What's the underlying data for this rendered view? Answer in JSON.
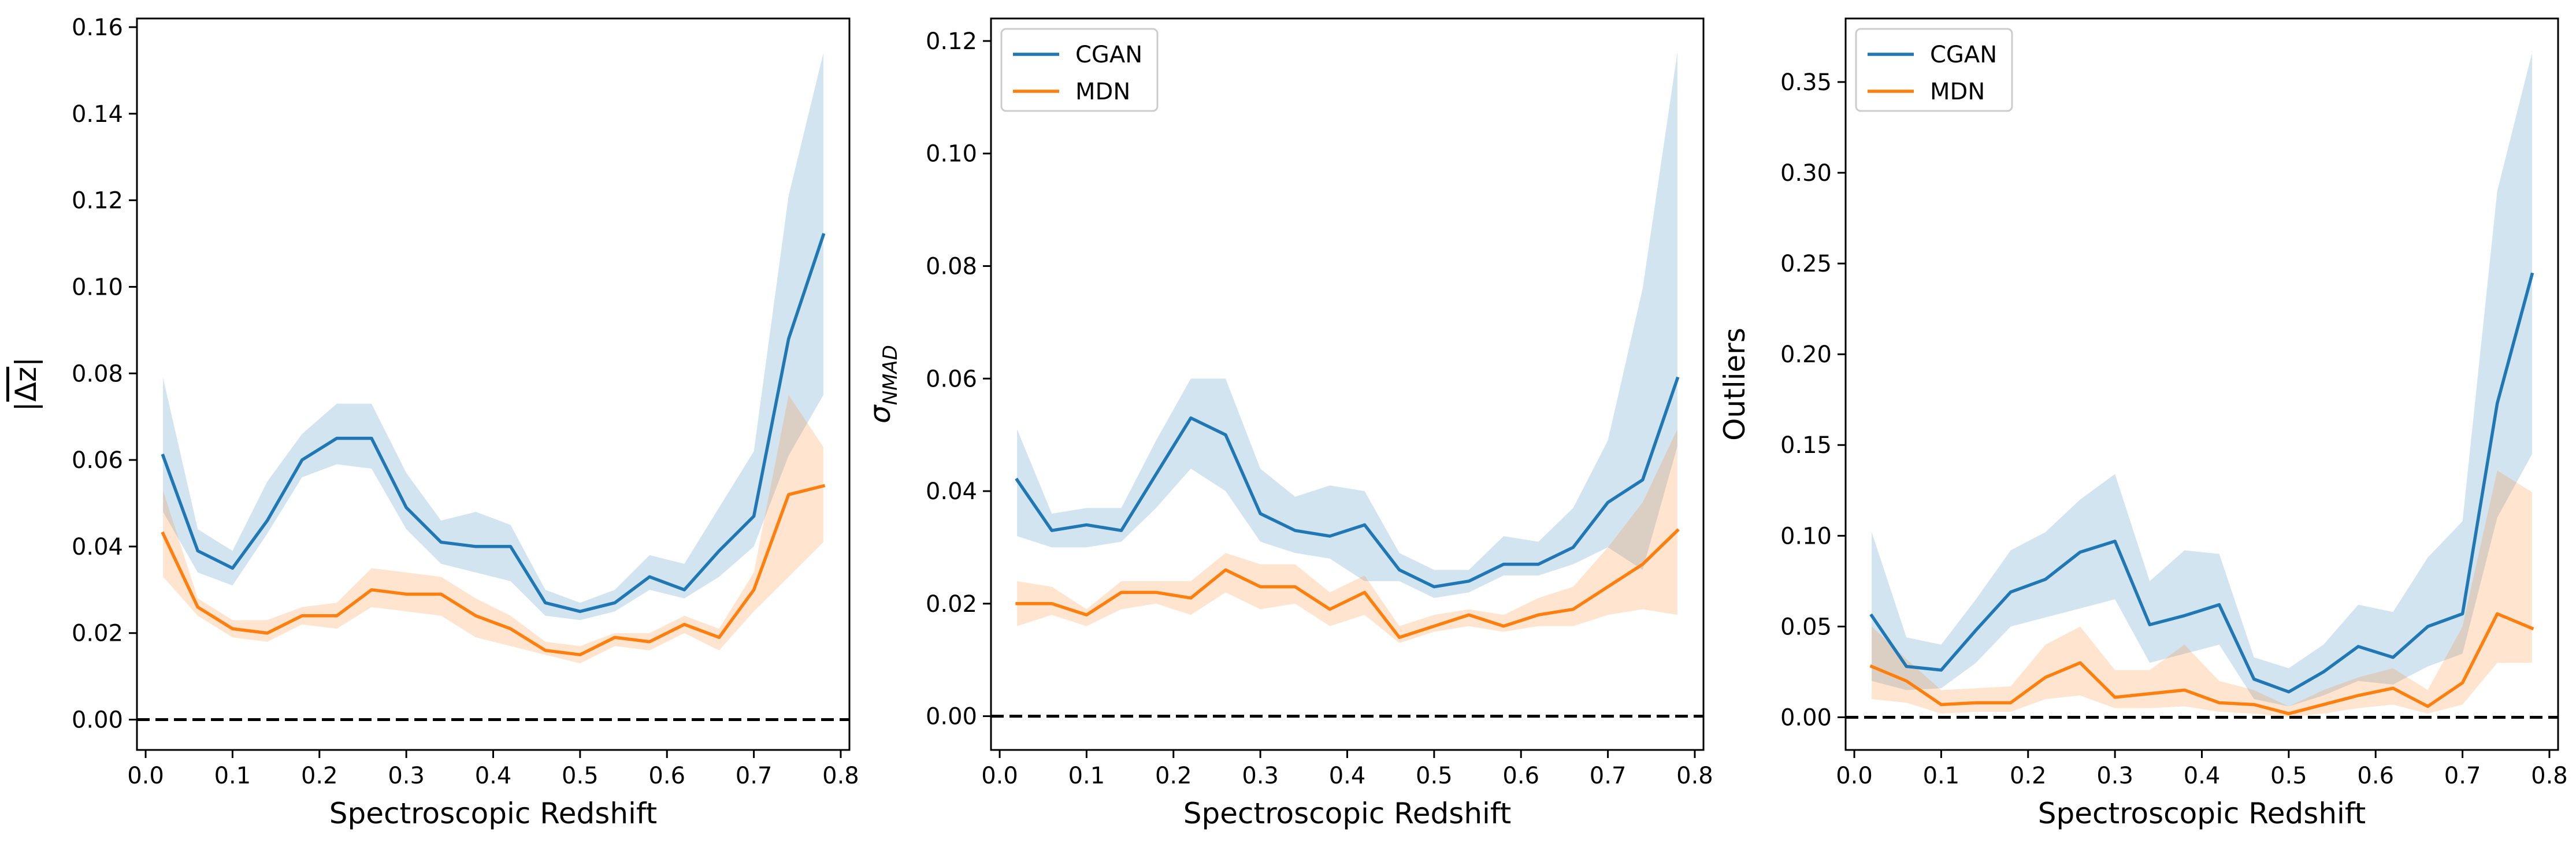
{
  "colors": {
    "cgan": "#1f77b4",
    "mdn": "#ff7f0e"
  },
  "chart_data": [
    {
      "type": "line",
      "xlabel": "Spectroscopic Redshift",
      "ylabel": "|Δz|",
      "xlim": [
        -0.01,
        0.81
      ],
      "ylim": [
        -0.007,
        0.162
      ],
      "xticks": [
        "0.0",
        "0.1",
        "0.2",
        "0.3",
        "0.4",
        "0.5",
        "0.6",
        "0.7",
        "0.8"
      ],
      "yticks": [
        "0.00",
        "0.02",
        "0.04",
        "0.06",
        "0.08",
        "0.10",
        "0.12",
        "0.14",
        "0.16"
      ],
      "legend": false,
      "reference_line": {
        "y": 0,
        "style": "dashed"
      },
      "x": [
        0.02,
        0.06,
        0.1,
        0.14,
        0.18,
        0.22,
        0.26,
        0.3,
        0.34,
        0.38,
        0.42,
        0.46,
        0.5,
        0.54,
        0.58,
        0.62,
        0.66,
        0.7,
        0.74,
        0.78
      ],
      "series": [
        {
          "name": "CGAN",
          "values": [
            0.061,
            0.039,
            0.035,
            0.046,
            0.06,
            0.065,
            0.065,
            0.049,
            0.041,
            0.04,
            0.04,
            0.027,
            0.025,
            0.027,
            0.033,
            0.03,
            0.039,
            0.047,
            0.088,
            0.112
          ],
          "lower": [
            0.048,
            0.034,
            0.031,
            0.043,
            0.056,
            0.059,
            0.058,
            0.044,
            0.036,
            0.034,
            0.032,
            0.024,
            0.023,
            0.025,
            0.03,
            0.028,
            0.033,
            0.04,
            0.061,
            0.075
          ],
          "upper": [
            0.079,
            0.044,
            0.039,
            0.055,
            0.066,
            0.073,
            0.073,
            0.057,
            0.046,
            0.048,
            0.045,
            0.03,
            0.027,
            0.03,
            0.038,
            0.036,
            0.049,
            0.062,
            0.121,
            0.154
          ]
        },
        {
          "name": "MDN",
          "values": [
            0.043,
            0.026,
            0.021,
            0.02,
            0.024,
            0.024,
            0.03,
            0.029,
            0.029,
            0.024,
            0.021,
            0.016,
            0.015,
            0.019,
            0.018,
            0.022,
            0.019,
            0.03,
            0.052,
            0.054
          ],
          "lower": [
            0.033,
            0.024,
            0.019,
            0.018,
            0.022,
            0.021,
            0.026,
            0.025,
            0.024,
            0.019,
            0.017,
            0.015,
            0.013,
            0.017,
            0.016,
            0.02,
            0.016,
            0.025,
            0.033,
            0.041
          ],
          "upper": [
            0.053,
            0.028,
            0.023,
            0.023,
            0.026,
            0.027,
            0.035,
            0.034,
            0.033,
            0.028,
            0.024,
            0.018,
            0.017,
            0.02,
            0.02,
            0.024,
            0.021,
            0.034,
            0.075,
            0.063
          ]
        }
      ]
    },
    {
      "type": "line",
      "xlabel": "Spectroscopic Redshift",
      "ylabel": "σ_NMAD",
      "xlim": [
        -0.01,
        0.81
      ],
      "ylim": [
        -0.006,
        0.124
      ],
      "xticks": [
        "0.0",
        "0.1",
        "0.2",
        "0.3",
        "0.4",
        "0.5",
        "0.6",
        "0.7",
        "0.8"
      ],
      "yticks": [
        "0.00",
        "0.02",
        "0.04",
        "0.06",
        "0.08",
        "0.10",
        "0.12"
      ],
      "legend": true,
      "legend_position": "top-left",
      "reference_line": {
        "y": 0,
        "style": "dashed"
      },
      "x": [
        0.02,
        0.06,
        0.1,
        0.14,
        0.18,
        0.22,
        0.26,
        0.3,
        0.34,
        0.38,
        0.42,
        0.46,
        0.5,
        0.54,
        0.58,
        0.62,
        0.66,
        0.7,
        0.74,
        0.78
      ],
      "series": [
        {
          "name": "CGAN",
          "values": [
            0.042,
            0.033,
            0.034,
            0.033,
            0.043,
            0.053,
            0.05,
            0.036,
            0.033,
            0.032,
            0.034,
            0.026,
            0.023,
            0.024,
            0.027,
            0.027,
            0.03,
            0.038,
            0.042,
            0.06
          ],
          "lower": [
            0.032,
            0.03,
            0.03,
            0.031,
            0.037,
            0.044,
            0.04,
            0.031,
            0.029,
            0.028,
            0.024,
            0.024,
            0.021,
            0.022,
            0.025,
            0.025,
            0.027,
            0.03,
            0.026,
            0.048
          ],
          "upper": [
            0.051,
            0.036,
            0.037,
            0.037,
            0.049,
            0.06,
            0.06,
            0.044,
            0.039,
            0.041,
            0.04,
            0.029,
            0.026,
            0.026,
            0.032,
            0.031,
            0.037,
            0.049,
            0.076,
            0.118
          ]
        },
        {
          "name": "MDN",
          "values": [
            0.02,
            0.02,
            0.018,
            0.022,
            0.022,
            0.021,
            0.026,
            0.023,
            0.023,
            0.019,
            0.022,
            0.014,
            0.016,
            0.018,
            0.016,
            0.018,
            0.019,
            0.023,
            0.027,
            0.033
          ],
          "lower": [
            0.016,
            0.018,
            0.016,
            0.019,
            0.02,
            0.018,
            0.022,
            0.019,
            0.02,
            0.016,
            0.018,
            0.013,
            0.015,
            0.016,
            0.015,
            0.016,
            0.016,
            0.018,
            0.019,
            0.018
          ],
          "upper": [
            0.024,
            0.023,
            0.019,
            0.024,
            0.024,
            0.024,
            0.029,
            0.027,
            0.027,
            0.022,
            0.025,
            0.016,
            0.018,
            0.019,
            0.018,
            0.021,
            0.023,
            0.03,
            0.038,
            0.051
          ]
        }
      ]
    },
    {
      "type": "line",
      "xlabel": "Spectroscopic Redshift",
      "ylabel": "Outliers",
      "xlim": [
        -0.01,
        0.81
      ],
      "ylim": [
        -0.018,
        0.385
      ],
      "xticks": [
        "0.0",
        "0.1",
        "0.2",
        "0.3",
        "0.4",
        "0.5",
        "0.6",
        "0.7",
        "0.8"
      ],
      "yticks": [
        "0.00",
        "0.05",
        "0.10",
        "0.15",
        "0.20",
        "0.25",
        "0.30",
        "0.35"
      ],
      "legend": true,
      "legend_position": "top-left",
      "reference_line": {
        "y": 0,
        "style": "dashed"
      },
      "x": [
        0.02,
        0.06,
        0.1,
        0.14,
        0.18,
        0.22,
        0.26,
        0.3,
        0.34,
        0.38,
        0.42,
        0.46,
        0.5,
        0.54,
        0.58,
        0.62,
        0.66,
        0.7,
        0.74,
        0.78
      ],
      "series": [
        {
          "name": "CGAN",
          "values": [
            0.056,
            0.028,
            0.026,
            0.048,
            0.069,
            0.076,
            0.091,
            0.097,
            0.051,
            0.056,
            0.062,
            0.021,
            0.014,
            0.025,
            0.039,
            0.033,
            0.05,
            0.057,
            0.173,
            0.244
          ],
          "lower": [
            0.02,
            0.015,
            0.016,
            0.03,
            0.05,
            0.055,
            0.06,
            0.065,
            0.03,
            0.035,
            0.04,
            0.01,
            0.006,
            0.012,
            0.02,
            0.018,
            0.028,
            0.035,
            0.11,
            0.145
          ],
          "upper": [
            0.102,
            0.044,
            0.04,
            0.065,
            0.092,
            0.102,
            0.12,
            0.134,
            0.075,
            0.092,
            0.09,
            0.033,
            0.027,
            0.04,
            0.062,
            0.058,
            0.088,
            0.108,
            0.29,
            0.366
          ]
        },
        {
          "name": "MDN",
          "values": [
            0.028,
            0.02,
            0.007,
            0.008,
            0.008,
            0.022,
            0.03,
            0.011,
            0.013,
            0.015,
            0.008,
            0.007,
            0.002,
            0.007,
            0.012,
            0.016,
            0.006,
            0.019,
            0.057,
            0.049
          ],
          "lower": [
            0.01,
            0.008,
            0.002,
            0.003,
            0.003,
            0.01,
            0.012,
            0.005,
            0.005,
            0.006,
            0.003,
            0.002,
            0.0,
            0.002,
            0.005,
            0.007,
            0.002,
            0.007,
            0.03,
            0.03
          ],
          "upper": [
            0.05,
            0.032,
            0.015,
            0.016,
            0.017,
            0.04,
            0.05,
            0.026,
            0.026,
            0.04,
            0.02,
            0.015,
            0.006,
            0.015,
            0.022,
            0.027,
            0.015,
            0.05,
            0.136,
            0.124
          ]
        }
      ]
    }
  ]
}
